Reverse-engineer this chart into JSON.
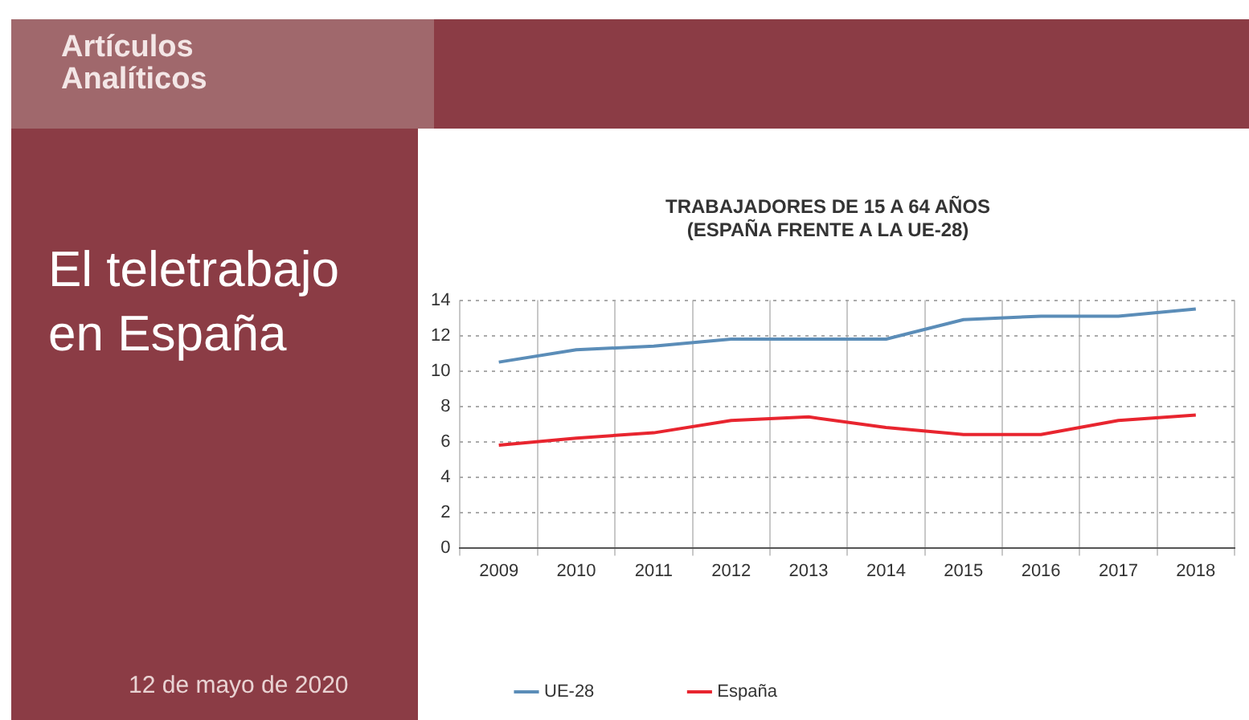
{
  "chart_data": {
    "type": "line",
    "title": "TRABAJADORES DE 15 A 64 AÑOS\n(ESPAÑA FRENTE A LA UE-28)",
    "annotations": [
      "Artículos\nAnalíticos",
      "El teletrabajo\nen España",
      "12 de mayo de 2020"
    ],
    "categories": [
      "2009",
      "2010",
      "2011",
      "2012",
      "2013",
      "2014",
      "2015",
      "2016",
      "2017",
      "2018"
    ],
    "series": [
      {
        "name": "UE-28",
        "color": "#5b8db8",
        "values": [
          10.5,
          11.2,
          11.4,
          11.8,
          11.8,
          11.8,
          12.9,
          13.1,
          13.1,
          13.5
        ]
      },
      {
        "name": "España",
        "color": "#e8252f",
        "values": [
          5.8,
          6.2,
          6.5,
          7.2,
          7.4,
          6.8,
          6.4,
          6.4,
          7.2,
          7.5
        ]
      }
    ],
    "ylim": [
      0,
      14
    ],
    "yticks": [
      0,
      2,
      4,
      6,
      8,
      10,
      12,
      14
    ],
    "grid": true,
    "legend": "bottom",
    "marker": "none",
    "line_style": "solid"
  }
}
